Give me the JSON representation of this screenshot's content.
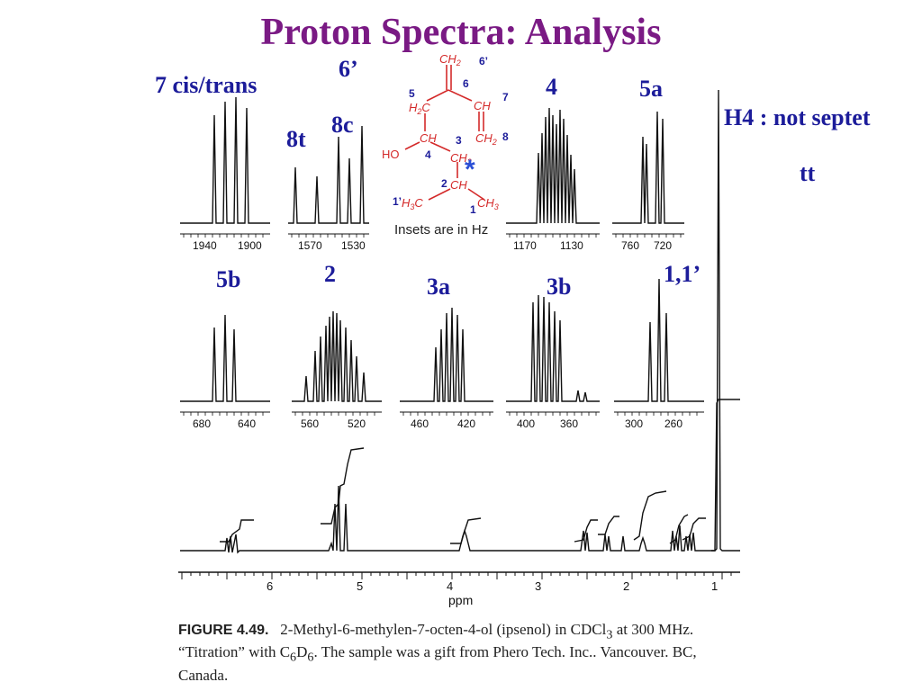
{
  "title": "Proton Spectra: Analysis",
  "labels": {
    "l_6p": "6’",
    "l_7": "7 cis/trans",
    "l_8c": "8c",
    "l_8t": "8t",
    "l_4": "4",
    "l_5a": "5a",
    "l_5b": "5b",
    "l_2": "2",
    "l_3a": "3a",
    "l_3b": "3b",
    "l_11p": "1,1’"
  },
  "notes": {
    "h4": "H4 : not septet",
    "tt": "tt"
  },
  "structure": {
    "ch2_top": "CH",
    "ch2_top_sub": "2",
    "num_6p": "6’",
    "num_5": "5",
    "num_6": "6",
    "num_7": "7",
    "h2c": "H",
    "h2c_sub": "2",
    "h2c_c": "C",
    "ch7": "CH",
    "ch": "CH",
    "num_3": "3",
    "ch2_8": "CH",
    "ch2_8_sub": "2",
    "num_8": "8",
    "ho": "HO",
    "num_4": "4",
    "ch2_3": "CH",
    "ch2_3_sub": "2",
    "star": "*",
    "num_2": "2",
    "ch2": "CH",
    "num_1p": "1’",
    "h3c": "H",
    "h3c_sub": "3",
    "h3c_c": "C",
    "ch3": "CH",
    "ch3_sub": "3",
    "num_1": "1",
    "insets_note": "Insets are in Hz"
  },
  "insets": {
    "i7": {
      "ticks": [
        "1940",
        "1900"
      ]
    },
    "i8": {
      "ticks": [
        "1570",
        "1530"
      ]
    },
    "i4": {
      "ticks": [
        "1170",
        "1130"
      ]
    },
    "i5a": {
      "ticks": [
        "760",
        "720"
      ]
    },
    "i5b": {
      "ticks": [
        "680",
        "640"
      ]
    },
    "i2": {
      "ticks": [
        "560",
        "520"
      ]
    },
    "i3a": {
      "ticks": [
        "460",
        "420"
      ]
    },
    "i3b": {
      "ticks": [
        "400",
        "360"
      ]
    },
    "i11": {
      "ticks": [
        "300",
        "260"
      ]
    }
  },
  "main_spectrum": {
    "xlabel": "ppm",
    "ticks": [
      "6",
      "5",
      "4",
      "3",
      "2",
      "1"
    ]
  },
  "caption": {
    "figure": "FIGURE 4.49.",
    "text1": "2-Methyl-6-methylen-7-octen-4-ol (ipsenol) in CDCl",
    "text1_sub": "3",
    "text2": " at 300 MHz.",
    "text3": "“Titration” with C",
    "text3_sub1": "6",
    "text4": "D",
    "text4_sub2": "6",
    "text5": ". The sample was a gift from Phero Tech. Inc.. Vancouver. BC,",
    "text6": "Canada."
  }
}
